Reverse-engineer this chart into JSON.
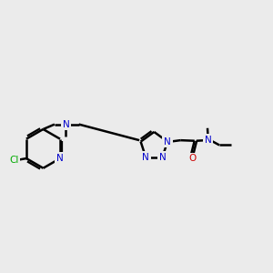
{
  "bg_color": "#ebebeb",
  "bond_color": "#000000",
  "N_color": "#0000cc",
  "O_color": "#cc0000",
  "Cl_color": "#00aa00",
  "line_width": 1.8,
  "figsize": [
    3.0,
    3.0
  ],
  "dpi": 100,
  "xlim": [
    0,
    10
  ],
  "ylim": [
    2,
    8
  ]
}
